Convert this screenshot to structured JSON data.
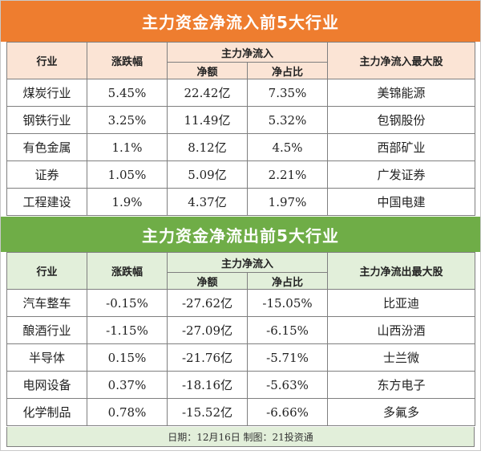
{
  "inflow": {
    "title": "主力资金净流入前5大行业",
    "headers": {
      "industry": "行业",
      "change": "涨跌幅",
      "main_group": "主力净流入",
      "net_amount": "净额",
      "net_ratio": "净占比",
      "top_stock": "主力净流入最大股"
    },
    "rows": [
      {
        "industry": "煤炭行业",
        "change": "5.45%",
        "net_amount": "22.42亿",
        "net_ratio": "7.35%",
        "top_stock": "美锦能源"
      },
      {
        "industry": "钢铁行业",
        "change": "3.25%",
        "net_amount": "11.49亿",
        "net_ratio": "5.32%",
        "top_stock": "包钢股份"
      },
      {
        "industry": "有色金属",
        "change": "1.1%",
        "net_amount": "8.12亿",
        "net_ratio": "4.5%",
        "top_stock": "西部矿业"
      },
      {
        "industry": "证券",
        "change": "1.05%",
        "net_amount": "5.09亿",
        "net_ratio": "2.21%",
        "top_stock": "广发证券"
      },
      {
        "industry": "工程建设",
        "change": "1.9%",
        "net_amount": "4.37亿",
        "net_ratio": "1.97%",
        "top_stock": "中国电建"
      }
    ],
    "banner_color": "#ee7d2f",
    "header_color": "#fbe4d5"
  },
  "outflow": {
    "title": "主力资金净流出前5大行业",
    "headers": {
      "industry": "行业",
      "change": "涨跌幅",
      "main_group": "主力净流入",
      "net_amount": "净额",
      "net_ratio": "净占比",
      "top_stock": "主力净流出最大股"
    },
    "rows": [
      {
        "industry": "汽车整车",
        "change": "-0.15%",
        "net_amount": "-27.62亿",
        "net_ratio": "-15.05%",
        "top_stock": "比亚迪"
      },
      {
        "industry": "酿酒行业",
        "change": "-1.15%",
        "net_amount": "-27.09亿",
        "net_ratio": "-6.15%",
        "top_stock": "山西汾酒"
      },
      {
        "industry": "半导体",
        "change": "0.15%",
        "net_amount": "-21.76亿",
        "net_ratio": "-5.71%",
        "top_stock": "士兰微"
      },
      {
        "industry": "电网设备",
        "change": "0.37%",
        "net_amount": "-18.16亿",
        "net_ratio": "-5.63%",
        "top_stock": "东方电子"
      },
      {
        "industry": "化学制品",
        "change": "0.78%",
        "net_amount": "-15.52亿",
        "net_ratio": "-6.66%",
        "top_stock": "多氟多"
      }
    ],
    "banner_color": "#6fad47",
    "header_color": "#e2efda"
  },
  "footer": {
    "text": "日期：12月16日  制图：21投资通"
  }
}
